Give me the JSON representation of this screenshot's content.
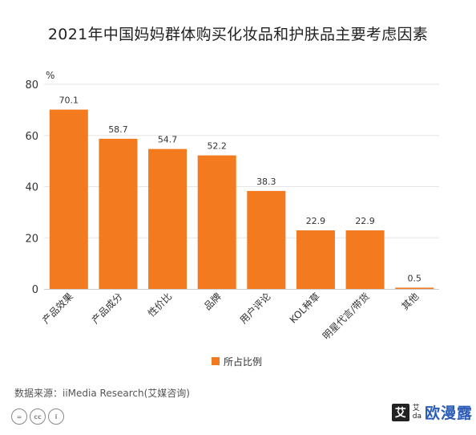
{
  "chart_data": {
    "type": "bar",
    "title": "2021年中国妈妈群体购买化妆品和护肤品主要考虑因素",
    "ylabel": "%",
    "xlabel": "",
    "ylim": [
      0,
      80
    ],
    "yticks": [
      0,
      20,
      40,
      60,
      80
    ],
    "grid": true,
    "categories": [
      "产品效果",
      "产品成分",
      "性价比",
      "品牌",
      "用户评论",
      "KOL种草",
      "明星代言/带货",
      "其他"
    ],
    "series": [
      {
        "name": "所占比例",
        "color": "#f47a20",
        "values": [
          70.1,
          58.7,
          54.7,
          52.2,
          38.3,
          22.9,
          22.9,
          0.5
        ],
        "value_labels": [
          "70.1",
          "58.7",
          "54.7",
          "52.2",
          "38.3",
          "22.9",
          "22.9",
          "0.5"
        ]
      }
    ],
    "legend": "bottom-center"
  },
  "footer": {
    "source": "数据来源：iiMedia Research(艾媒咨询)"
  },
  "license_icons": [
    "cc-icon",
    "by-icon",
    "person-icon"
  ],
  "license_labels": [
    "=",
    "cc",
    "i"
  ],
  "watermark": {
    "logo_char": "艾",
    "small_top": "艾",
    "small_bottom": "da",
    "text": "欧漫露"
  },
  "colors": {
    "bar": "#f47a20",
    "grid": "#e5e5e5",
    "axis": "#cccccc"
  }
}
